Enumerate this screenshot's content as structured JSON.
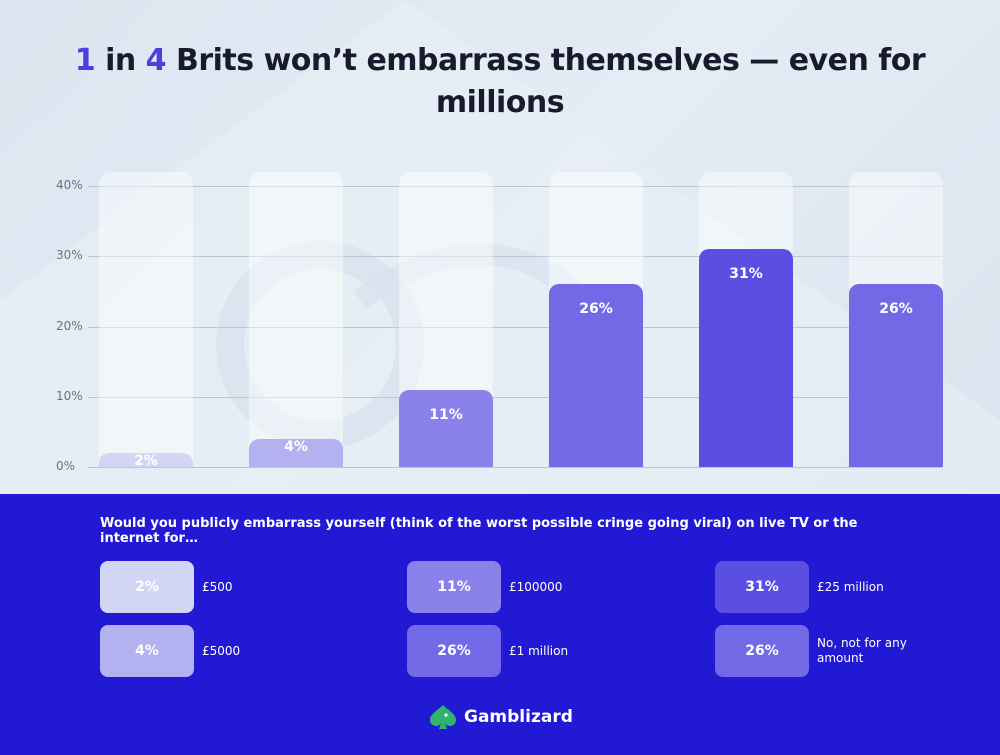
{
  "title": {
    "part1": "1",
    "part2": " in ",
    "part3": "4",
    "part4": " Brits won’t embarrass themselves — even for",
    "line2": "millions"
  },
  "chart_data": {
    "type": "bar",
    "categories": [
      "£500",
      "£5000",
      "£100000",
      "£1 million",
      "£25 million",
      "No, not for any amount"
    ],
    "values": [
      2,
      4,
      11,
      26,
      31,
      26
    ],
    "value_labels": [
      "2%",
      "4%",
      "11%",
      "26%",
      "31%",
      "26%"
    ],
    "colors": [
      "#d3d5f5",
      "#b4b1f1",
      "#8a82ea",
      "#7269e6",
      "#5a4fe2",
      "#7269e6"
    ],
    "ylim": [
      0,
      40
    ],
    "yticks": [
      0,
      10,
      20,
      30,
      40
    ],
    "ytick_labels": [
      "0%",
      "10%",
      "20%",
      "30%",
      "40%"
    ],
    "grid": true,
    "legend_position": "bottom"
  },
  "legend": {
    "question": "Would you publicly embarrass yourself (think of the worst possible cringe going viral) on live TV or the internet for…",
    "items": [
      {
        "value": "2%",
        "label": "£500",
        "color": "#d3d5f5"
      },
      {
        "value": "4%",
        "label": "£5000",
        "color": "#b4b1f1"
      },
      {
        "value": "11%",
        "label": "£100000",
        "color": "#8a82ea"
      },
      {
        "value": "26%",
        "label": "£1 million",
        "color": "#7269e6"
      },
      {
        "value": "31%",
        "label": "£25 million",
        "color": "#5a4fe2"
      },
      {
        "value": "26%",
        "label": "No, not for any amount",
        "color": "#7269e6"
      }
    ]
  },
  "brand": {
    "name": "Gamblizard",
    "icon": "lizard-spade-icon",
    "color": "#2fb46e"
  }
}
